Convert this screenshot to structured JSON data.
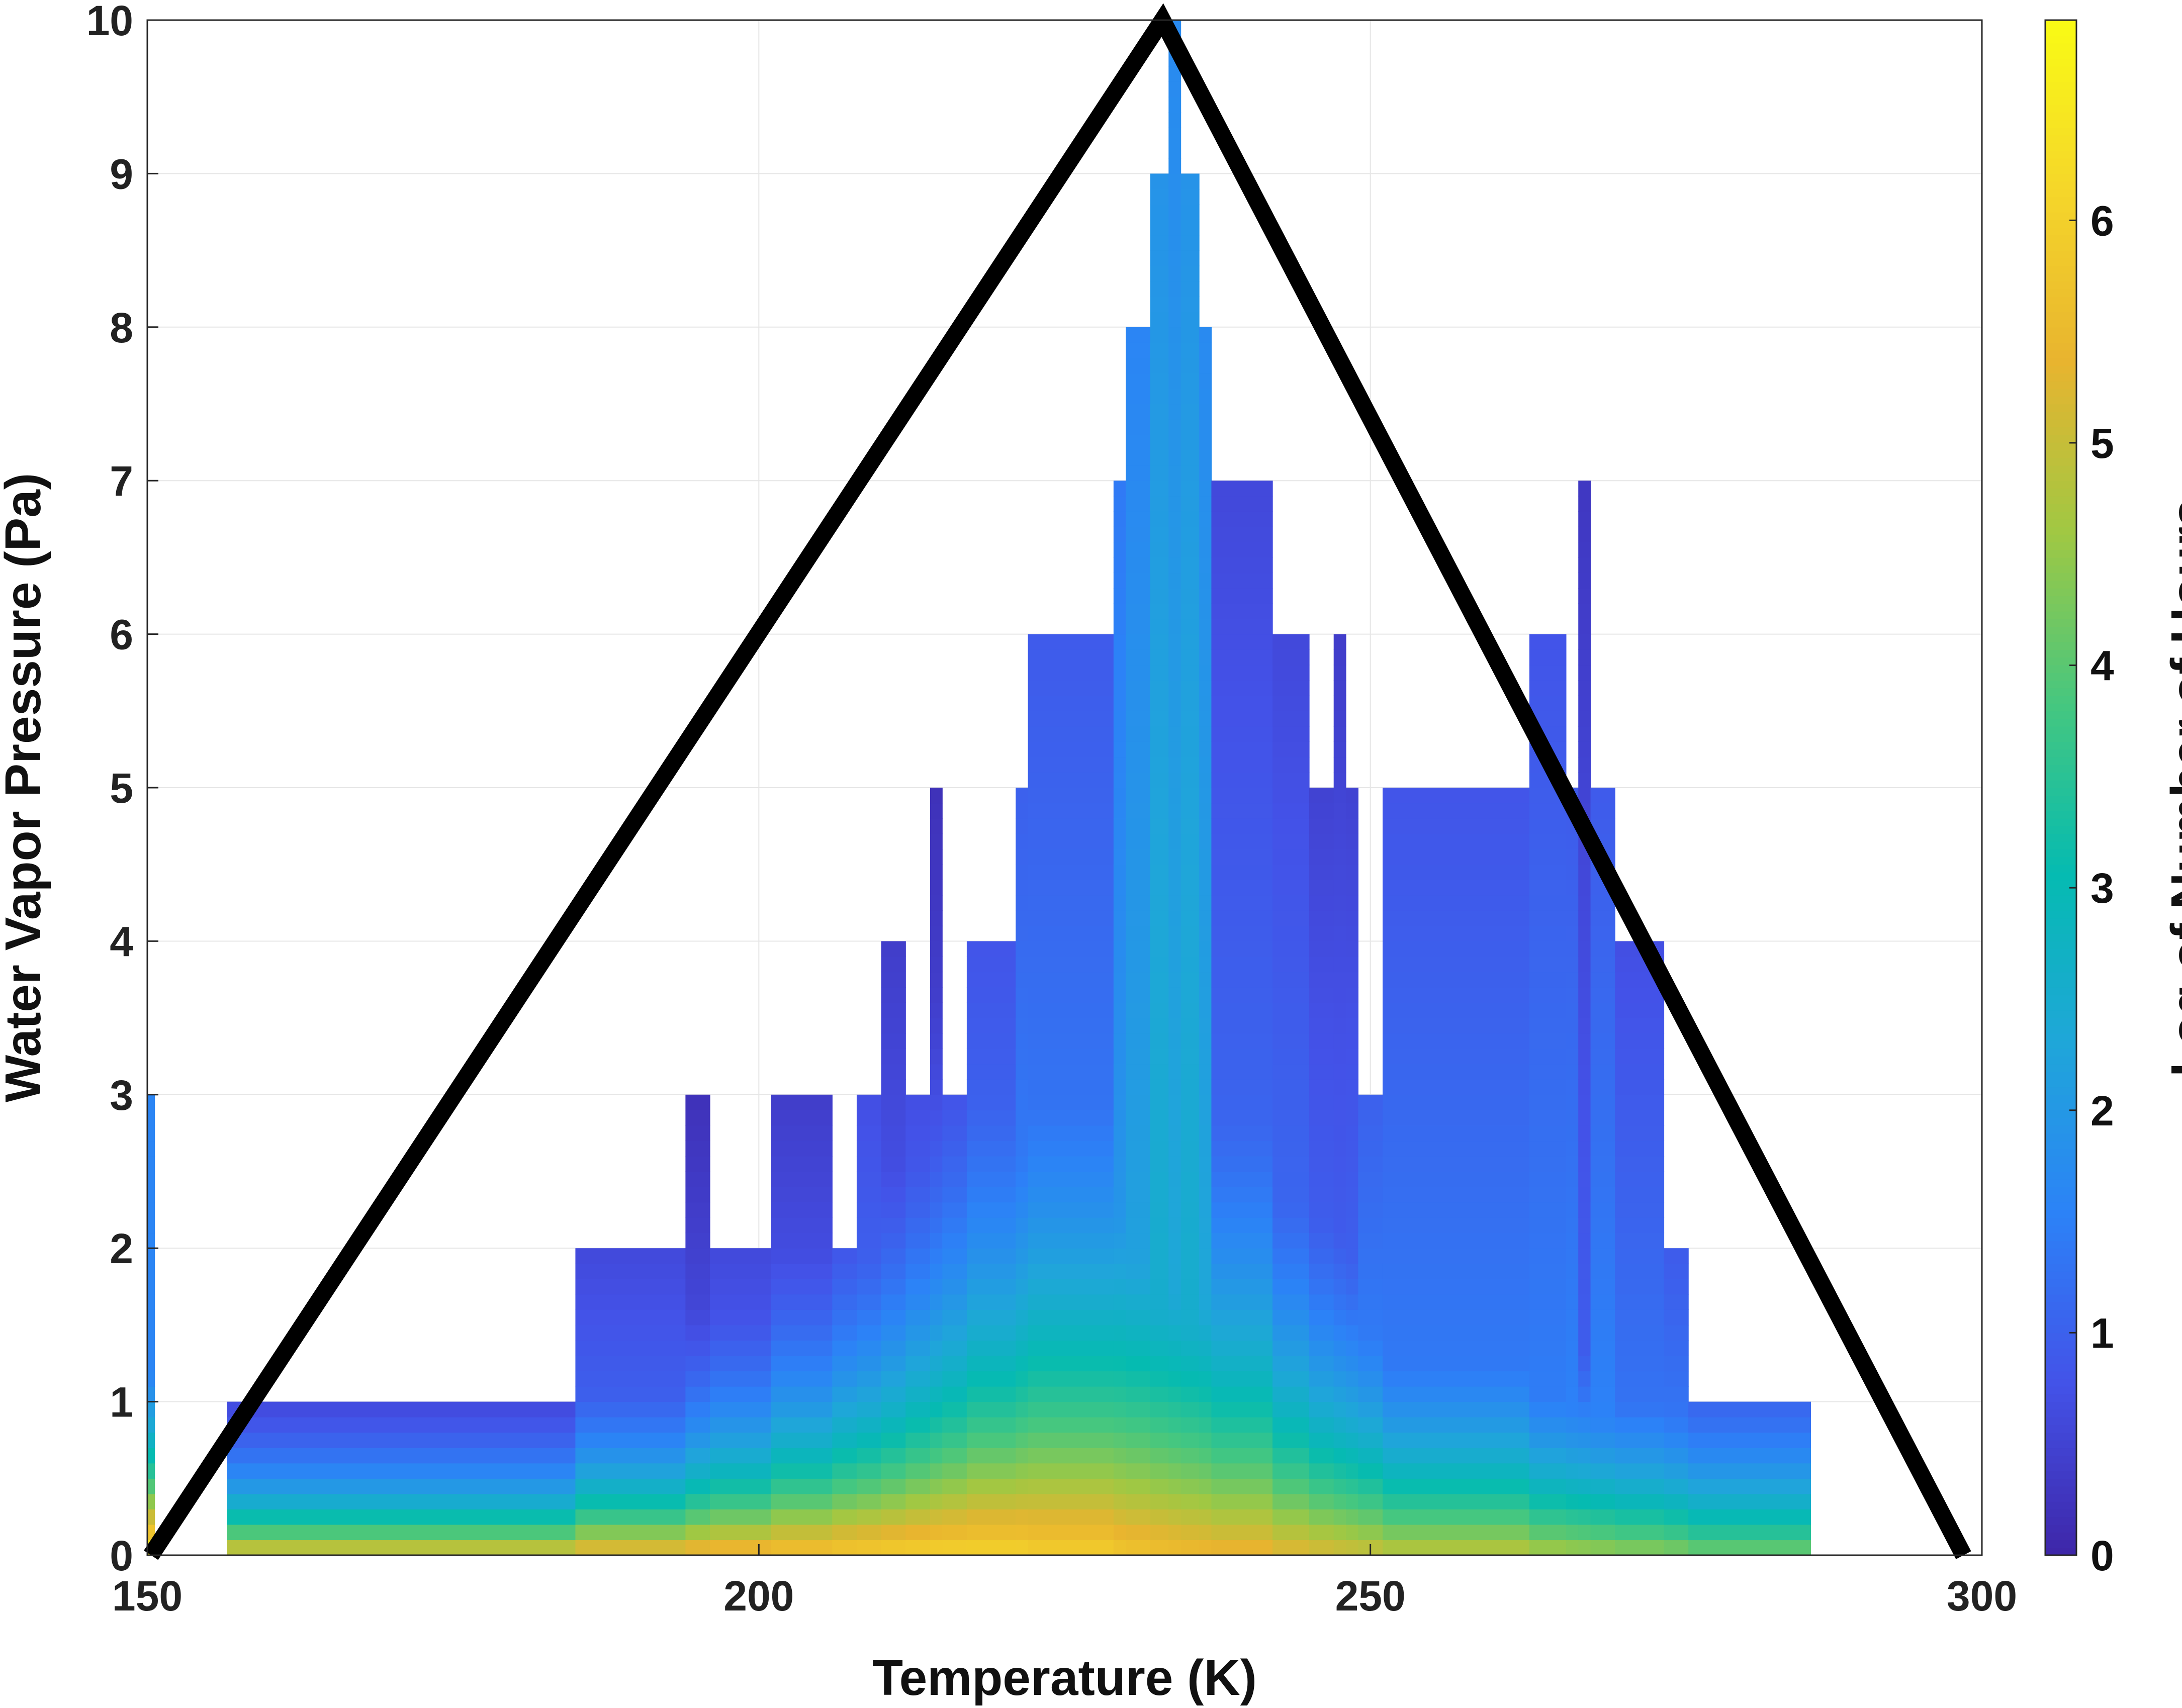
{
  "chart_data": {
    "type": "heatmap",
    "title": "",
    "xlabel": "Temperature (K)",
    "ylabel": "Water Vapor Pressure (Pa)",
    "xlim": [
      150,
      300
    ],
    "ylim": [
      0,
      10
    ],
    "x_ticks": [
      150,
      200,
      250,
      300
    ],
    "y_ticks": [
      0,
      1,
      2,
      3,
      4,
      5,
      6,
      7,
      8,
      9,
      10
    ],
    "grid": true,
    "colorbar": {
      "label": "Log of Number of Hours",
      "range": [
        0,
        6.9
      ],
      "ticks": [
        0,
        1,
        2,
        3,
        4,
        5,
        6
      ],
      "colormap": "parula",
      "colors": [
        "#3e26a8",
        "#4352e8",
        "#2c82f7",
        "#1fa6d9",
        "#05bbb1",
        "#46c77f",
        "#a0c843",
        "#e8b42f",
        "#f5d62a",
        "#f9fb15"
      ]
    },
    "coverage_columns": [
      {
        "x0": 150,
        "x1": 150.6,
        "ymax": 3,
        "edge_value": 1.6
      },
      {
        "x0": 156.5,
        "x1": 185,
        "ymax": 1,
        "edge_value": 0.5
      },
      {
        "x0": 185,
        "x1": 194,
        "ymax": 2,
        "edge_value": 0.6
      },
      {
        "x0": 194,
        "x1": 196,
        "ymax": 3,
        "edge_value": 0.2
      },
      {
        "x0": 196,
        "x1": 201,
        "ymax": 2,
        "edge_value": 0.6
      },
      {
        "x0": 201,
        "x1": 206,
        "ymax": 3,
        "edge_value": 0.4
      },
      {
        "x0": 206,
        "x1": 208,
        "ymax": 2,
        "edge_value": 0.5
      },
      {
        "x0": 208,
        "x1": 210,
        "ymax": 3,
        "edge_value": 0.7
      },
      {
        "x0": 210,
        "x1": 212,
        "ymax": 4,
        "edge_value": 0.4
      },
      {
        "x0": 212,
        "x1": 214,
        "ymax": 3,
        "edge_value": 0.7
      },
      {
        "x0": 214,
        "x1": 215,
        "ymax": 5,
        "edge_value": 0.2
      },
      {
        "x0": 215,
        "x1": 217,
        "ymax": 3,
        "edge_value": 0.7
      },
      {
        "x0": 217,
        "x1": 221,
        "ymax": 4,
        "edge_value": 0.8
      },
      {
        "x0": 221,
        "x1": 222,
        "ymax": 5,
        "edge_value": 1.0
      },
      {
        "x0": 222,
        "x1": 229,
        "ymax": 6,
        "edge_value": 0.9
      },
      {
        "x0": 229,
        "x1": 230,
        "ymax": 7,
        "edge_value": 1.4
      },
      {
        "x0": 230,
        "x1": 232,
        "ymax": 8,
        "edge_value": 1.6
      },
      {
        "x0": 232,
        "x1": 233.5,
        "ymax": 9,
        "edge_value": 1.9
      },
      {
        "x0": 233.5,
        "x1": 234.5,
        "ymax": 10,
        "edge_value": 1.7
      },
      {
        "x0": 234.5,
        "x1": 236,
        "ymax": 9,
        "edge_value": 1.9
      },
      {
        "x0": 236,
        "x1": 237,
        "ymax": 8,
        "edge_value": 1.7
      },
      {
        "x0": 237,
        "x1": 242,
        "ymax": 7,
        "edge_value": 0.6
      },
      {
        "x0": 242,
        "x1": 245,
        "ymax": 6,
        "edge_value": 0.6
      },
      {
        "x0": 245,
        "x1": 247,
        "ymax": 5,
        "edge_value": 0.5
      },
      {
        "x0": 247,
        "x1": 248,
        "ymax": 6,
        "edge_value": 0.4
      },
      {
        "x0": 248,
        "x1": 249,
        "ymax": 5,
        "edge_value": 0.5
      },
      {
        "x0": 249,
        "x1": 251,
        "ymax": 3,
        "edge_value": 1.0
      },
      {
        "x0": 251,
        "x1": 263,
        "ymax": 5,
        "edge_value": 0.8
      },
      {
        "x0": 263,
        "x1": 266,
        "ymax": 6,
        "edge_value": 0.8
      },
      {
        "x0": 266,
        "x1": 267,
        "ymax": 5,
        "edge_value": 0.9
      },
      {
        "x0": 267,
        "x1": 268,
        "ymax": 7,
        "edge_value": 0.3
      },
      {
        "x0": 268,
        "x1": 270,
        "ymax": 5,
        "edge_value": 0.9
      },
      {
        "x0": 270,
        "x1": 274,
        "ymax": 4,
        "edge_value": 0.7
      },
      {
        "x0": 274,
        "x1": 276,
        "ymax": 2,
        "edge_value": 0.9
      },
      {
        "x0": 276,
        "x1": 286,
        "ymax": 1,
        "edge_value": 1.1
      }
    ],
    "value_profile_x": [
      150,
      160,
      170,
      180,
      190,
      200,
      210,
      215,
      220,
      225,
      230,
      235,
      240,
      245,
      250,
      260,
      270,
      280,
      286
    ],
    "value_profile_base": [
      6.9,
      5.4,
      5.4,
      5.4,
      5.6,
      5.8,
      6.0,
      6.1,
      6.1,
      6.0,
      5.8,
      5.6,
      5.5,
      5.3,
      5.1,
      4.9,
      4.6,
      4.3,
      4.2
    ],
    "value_profile_height": [
      0.8,
      0.45,
      0.45,
      0.5,
      0.6,
      0.8,
      1.1,
      1.4,
      1.7,
      1.9,
      2.0,
      1.9,
      1.7,
      1.3,
      1.1,
      0.9,
      0.8,
      0.7,
      0.7
    ],
    "triangle_overlay": {
      "vertices": [
        [
          150.3,
          0
        ],
        [
          233,
          10
        ],
        [
          298.5,
          0
        ]
      ],
      "color": "#000000"
    }
  }
}
